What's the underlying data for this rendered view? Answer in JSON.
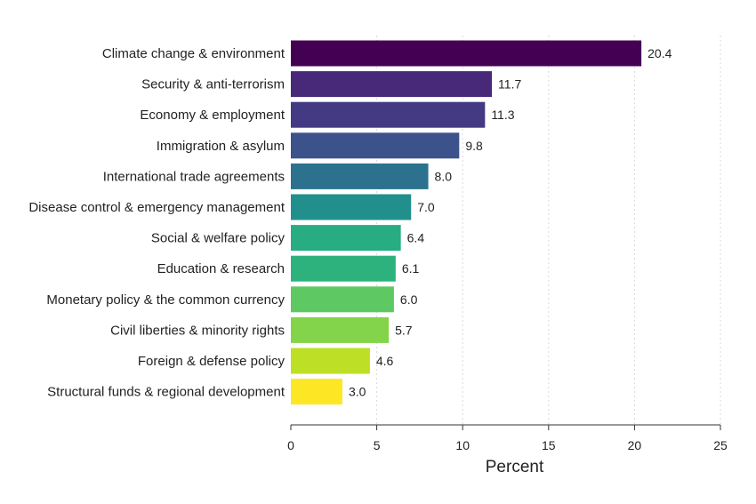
{
  "chart_data": {
    "type": "bar",
    "orientation": "horizontal",
    "categories": [
      "Climate change & environment",
      "Security & anti-terrorism",
      "Economy & employment",
      "Immigration & asylum",
      "International trade agreements",
      "Disease control & emergency management",
      "Social & welfare policy",
      "Education & research",
      "Monetary policy & the common currency",
      "Civil liberties & minority rights",
      "Foreign & defense policy",
      "Structural funds & regional development"
    ],
    "values": [
      20.4,
      11.7,
      11.3,
      9.8,
      8.0,
      7.0,
      6.4,
      6.1,
      6.0,
      5.7,
      4.6,
      3.0
    ],
    "value_labels": [
      "20.4",
      "11.7",
      "11.3",
      "9.8",
      "8.0",
      "7.0",
      "6.4",
      "6.1",
      "6.0",
      "5.7",
      "4.6",
      "3.0"
    ],
    "colors": [
      "#440154",
      "#482878",
      "#443983",
      "#3b528b",
      "#2c728e",
      "#21908d",
      "#27ad81",
      "#2db27d",
      "#5ec962",
      "#84d44b",
      "#bddf26",
      "#fde725"
    ],
    "xlabel": "Percent",
    "ylabel": "",
    "title": "",
    "xlim": [
      0,
      25
    ],
    "xticks": [
      0,
      5,
      10,
      15,
      20,
      25
    ],
    "xtick_labels": [
      "0",
      "5",
      "10",
      "15",
      "20",
      "25"
    ],
    "grid": "vertical dotted",
    "legend": "none"
  }
}
